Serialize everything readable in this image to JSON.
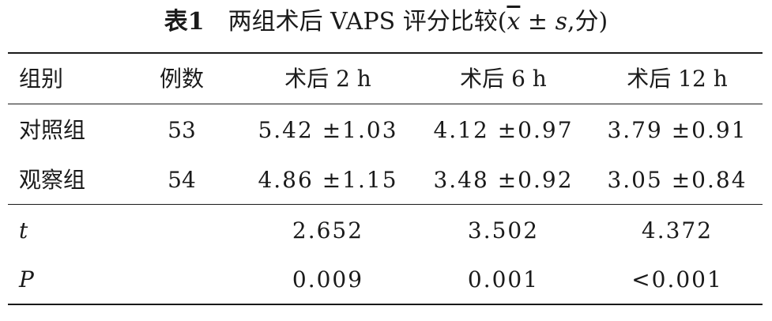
{
  "caption": {
    "label": "表",
    "number": "1",
    "text_before": "两组术后 VAPS 评分比较(",
    "xbar": "x",
    "pm_s": " ± ",
    "s": "s",
    "text_after": ",分)"
  },
  "table": {
    "headers": [
      "组别",
      "例数",
      "术后 2 h",
      "术后 6 h",
      "术后 12 h"
    ],
    "rows": [
      {
        "group": "对照组",
        "n": "53",
        "h2": "5.42 ±1.03",
        "h6": "4.12 ±0.97",
        "h12": "3.79 ±0.91"
      },
      {
        "group": "观察组",
        "n": "54",
        "h2": "4.86 ±1.15",
        "h6": "3.48 ±0.92",
        "h12": "3.05 ±0.84"
      }
    ],
    "stats": [
      {
        "label": "t",
        "h2": "2.652",
        "h6": "3.502",
        "h12": "4.372"
      },
      {
        "label": "P",
        "h2": "0.009",
        "h6": "0.001",
        "h12": "<0.001"
      }
    ]
  }
}
